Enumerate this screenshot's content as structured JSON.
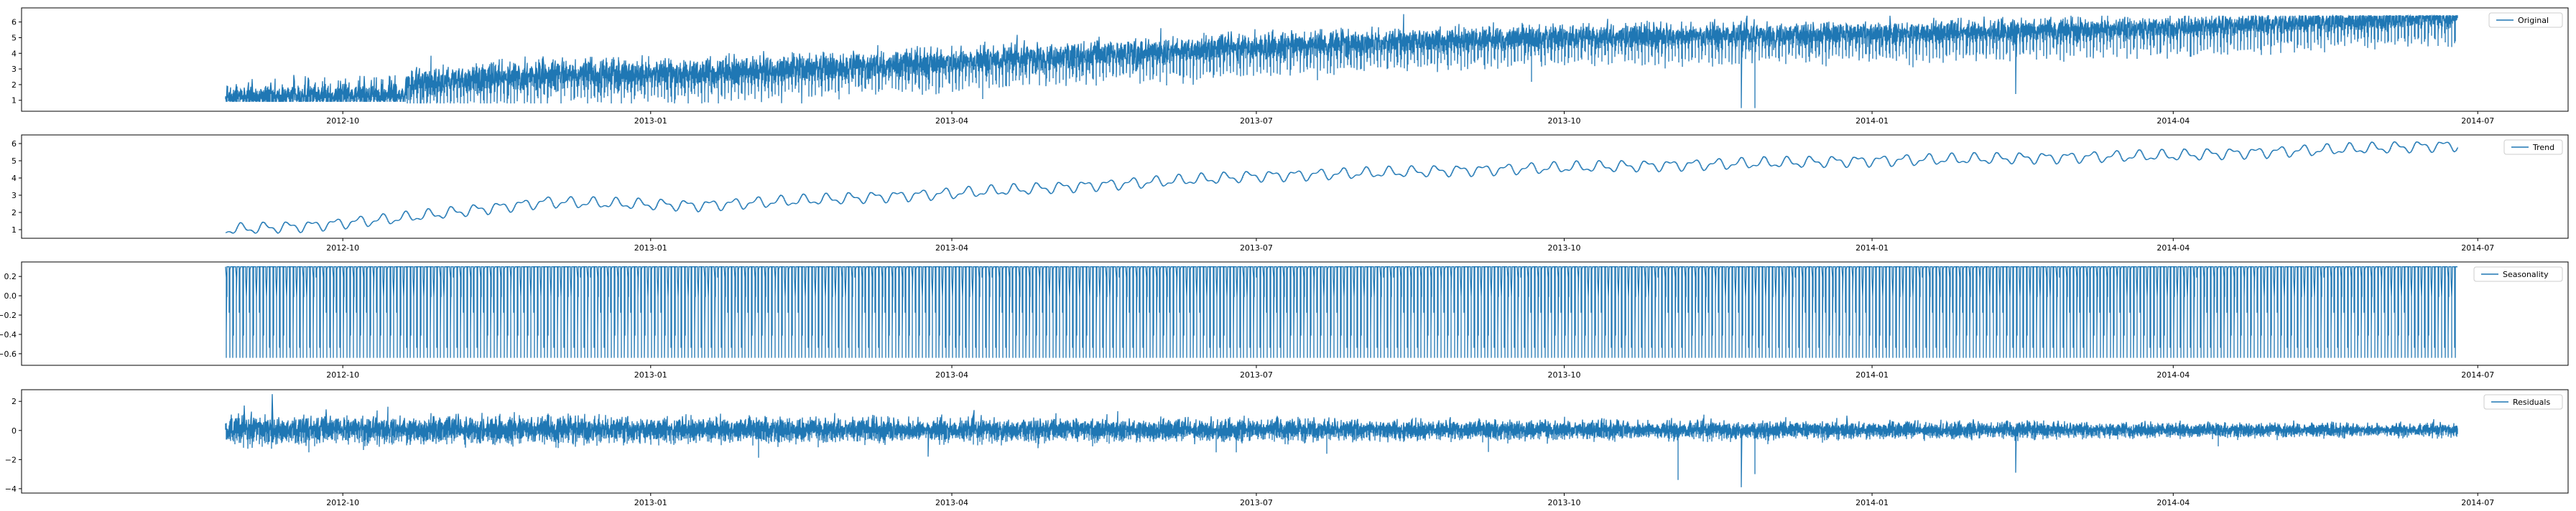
{
  "colors": {
    "series": "#1f77b4",
    "axes": "#000000",
    "legend_border": "#cccccc"
  },
  "x_ticks": [
    "2012-10",
    "2013-01",
    "2013-04",
    "2013-07",
    "2013-10",
    "2014-01",
    "2014-04",
    "2014-07"
  ],
  "chart_data": [
    {
      "type": "line",
      "title": "",
      "legend": "Original",
      "legend_position": "upper right",
      "x_start": "2012-08-27",
      "x_end": "2014-06-25",
      "xlim": [
        "2012-06-27",
        "2014-07-28"
      ],
      "yticks": [
        1,
        2,
        3,
        4,
        5,
        6
      ],
      "ylim": [
        0.3,
        6.9
      ],
      "trend_anchors": [
        [
          "2012-08-27",
          1.2
        ],
        [
          "2012-10-01",
          1.4
        ],
        [
          "2012-12-01",
          2.2
        ],
        [
          "2013-01-15",
          2.3
        ],
        [
          "2013-04-01",
          3.0
        ],
        [
          "2013-07-01",
          4.0
        ],
        [
          "2013-10-01",
          4.6
        ],
        [
          "2014-01-01",
          4.8
        ],
        [
          "2014-04-01",
          5.2
        ],
        [
          "2014-06-25",
          5.9
        ]
      ],
      "spikes": [
        [
          "2013-08-14",
          6.5
        ],
        [
          "2013-11-23",
          0.5
        ],
        [
          "2013-11-27",
          0.5
        ],
        [
          "2014-02-13",
          1.4
        ]
      ]
    },
    {
      "type": "line",
      "legend": "Trend",
      "legend_position": "upper right",
      "x_start": "2012-08-27",
      "x_end": "2014-06-25",
      "yticks": [
        1,
        2,
        3,
        4,
        5,
        6
      ],
      "ylim": [
        0.5,
        6.5
      ],
      "trend_anchors": [
        [
          "2012-08-27",
          1.0
        ],
        [
          "2012-09-20",
          1.2
        ],
        [
          "2012-10-15",
          1.6
        ],
        [
          "2012-12-01",
          2.6
        ],
        [
          "2013-01-15",
          2.4
        ],
        [
          "2013-04-01",
          3.1
        ],
        [
          "2013-07-01",
          4.1
        ],
        [
          "2013-10-01",
          4.6
        ],
        [
          "2014-01-01",
          5.0
        ],
        [
          "2014-04-01",
          5.3
        ],
        [
          "2014-06-25",
          5.9
        ]
      ]
    },
    {
      "type": "line",
      "legend": "Seasonality",
      "legend_position": "upper right",
      "x_start": "2012-08-27",
      "x_end": "2014-06-25",
      "yticks": [
        0.2,
        0.0,
        -0.2,
        -0.4,
        -0.6
      ],
      "ytick_labels": [
        "0.2",
        "0.0",
        "−0.2",
        "−0.4",
        "−0.6"
      ],
      "ylim": [
        -0.72,
        0.35
      ],
      "range": [
        -0.65,
        0.3
      ],
      "period_days": 1
    },
    {
      "type": "line",
      "legend": "Residuals",
      "legend_position": "upper right",
      "x_start": "2012-08-27",
      "x_end": "2014-06-25",
      "yticks": [
        2,
        0,
        -2,
        -4
      ],
      "ytick_labels": [
        "2",
        "0",
        "−2",
        "−4"
      ],
      "ylim": [
        -4.3,
        2.8
      ],
      "spikes": [
        [
          "2012-09-10",
          2.5
        ],
        [
          "2013-03-25",
          -1.8
        ],
        [
          "2013-06-19",
          -1.5
        ],
        [
          "2013-06-25",
          -1.5
        ],
        [
          "2013-07-22",
          -1.6
        ],
        [
          "2013-11-04",
          -3.4
        ],
        [
          "2013-11-23",
          -3.9
        ],
        [
          "2013-11-27",
          -3.0
        ],
        [
          "2014-02-13",
          -2.9
        ]
      ]
    }
  ]
}
